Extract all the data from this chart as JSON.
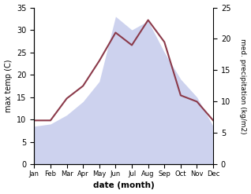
{
  "months": [
    "Jan",
    "Feb",
    "Mar",
    "Apr",
    "May",
    "Jun",
    "Jul",
    "Aug",
    "Sep",
    "Oct",
    "Nov",
    "Dec"
  ],
  "temp": [
    8.5,
    9.0,
    11.0,
    14.0,
    18.5,
    33.0,
    30.0,
    32.0,
    25.0,
    19.0,
    15.0,
    8.5
  ],
  "precip": [
    7.0,
    7.0,
    10.5,
    12.5,
    16.5,
    21.0,
    19.0,
    23.0,
    19.5,
    11.0,
    10.0,
    7.0
  ],
  "precip_color": "#8b3a4a",
  "temp_fill_color": "#b8c0e8",
  "left_ylim": [
    0,
    35
  ],
  "right_ylim": [
    0,
    25
  ],
  "left_yticks": [
    0,
    5,
    10,
    15,
    20,
    25,
    30,
    35
  ],
  "right_yticks": [
    0,
    5,
    10,
    15,
    20,
    25
  ],
  "xlabel": "date (month)",
  "ylabel_left": "max temp (C)",
  "ylabel_right": "med. precipitation (kg/m2)",
  "bg_color": "#ffffff"
}
